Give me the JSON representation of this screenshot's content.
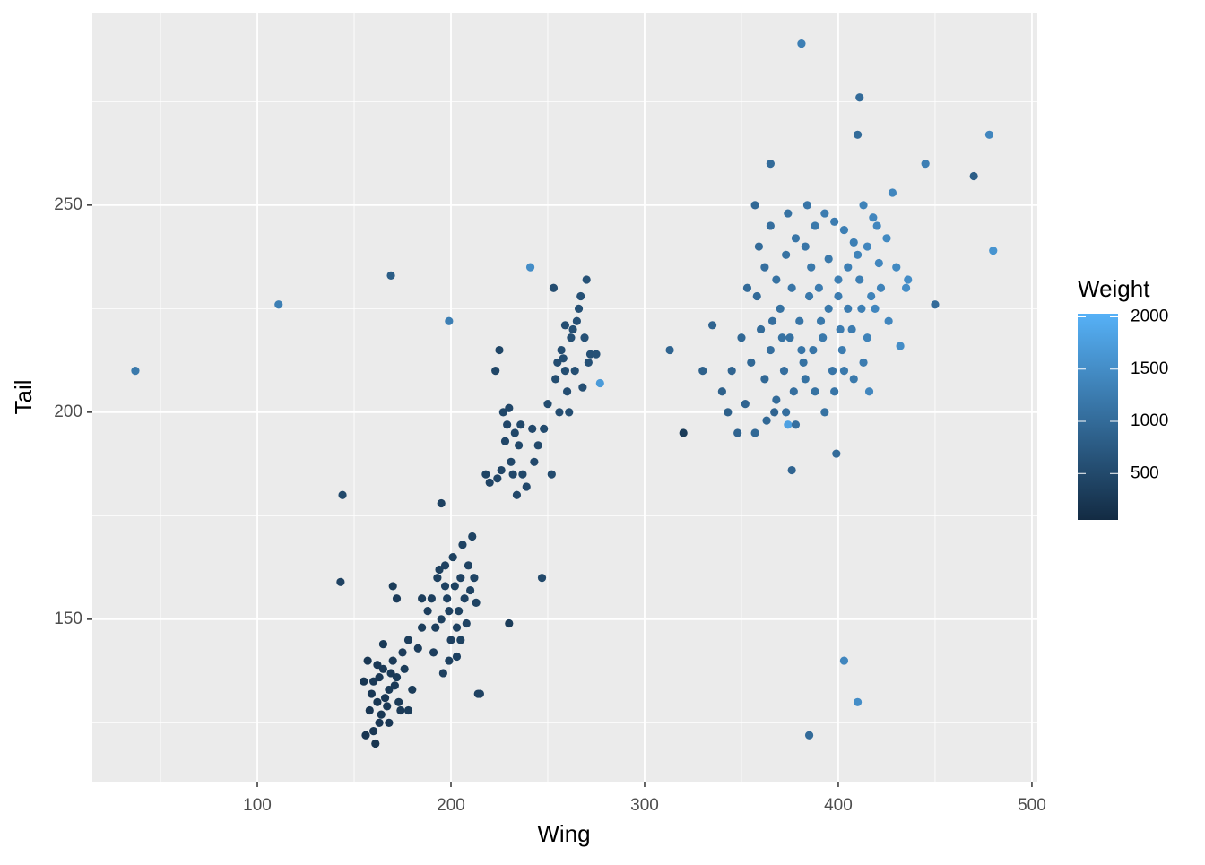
{
  "chart_data": {
    "type": "scatter",
    "x_label": "Wing",
    "y_label": "Tail",
    "legend_title": "Weight",
    "xlim": [
      14.8,
      502.8
    ],
    "ylim": [
      110.8,
      296.5
    ],
    "xticks": [
      100,
      200,
      300,
      400,
      500
    ],
    "yticks": [
      150,
      200,
      250
    ],
    "x_minor_ticks": [
      50,
      150,
      250,
      350,
      450
    ],
    "y_minor_ticks": [
      125,
      175,
      225,
      275
    ],
    "grid": true,
    "color_low": "#132B43",
    "color_high": "#56B1F7",
    "colorlim": [
      56,
      2030
    ],
    "color_ticks": [
      500,
      1000,
      1500,
      2000
    ],
    "x": [
      37,
      111,
      169,
      199,
      241,
      144,
      143,
      277,
      313,
      320,
      385,
      403,
      410,
      381,
      411,
      410,
      478,
      470,
      445,
      480,
      365,
      450,
      432,
      399,
      376,
      374,
      247,
      230,
      215,
      160,
      162,
      165,
      158,
      170,
      168,
      163,
      156,
      172,
      175,
      166,
      161,
      159,
      164,
      167,
      171,
      173,
      176,
      178,
      180,
      155,
      157,
      169,
      174,
      165,
      162,
      168,
      178,
      183,
      185,
      170,
      172,
      160,
      163,
      190,
      193,
      195,
      197,
      199,
      201,
      203,
      205,
      207,
      209,
      211,
      200,
      196,
      194,
      192,
      198,
      202,
      204,
      206,
      208,
      210,
      212,
      213,
      191,
      188,
      185,
      195,
      214,
      203,
      197,
      199,
      205,
      218,
      220,
      223,
      225,
      226,
      228,
      230,
      231,
      233,
      235,
      237,
      239,
      242,
      245,
      243,
      232,
      229,
      236,
      253,
      255,
      257,
      259,
      260,
      262,
      264,
      266,
      268,
      270,
      272,
      250,
      252,
      256,
      259,
      261,
      263,
      265,
      267,
      248,
      254,
      258,
      269,
      271,
      275,
      224,
      227,
      234,
      360,
      365,
      370,
      375,
      380,
      385,
      390,
      395,
      400,
      405,
      410,
      415,
      420,
      425,
      428,
      430,
      435,
      372,
      377,
      382,
      387,
      392,
      397,
      402,
      407,
      412,
      417,
      422,
      362,
      367,
      355,
      350,
      345,
      340,
      343,
      348,
      352,
      357,
      363,
      368,
      373,
      378,
      383,
      388,
      393,
      398,
      403,
      408,
      413,
      416,
      358,
      362,
      368,
      373,
      378,
      383,
      388,
      393,
      398,
      403,
      408,
      413,
      418,
      357,
      395,
      400,
      386,
      376,
      366,
      371,
      381,
      391,
      401,
      411,
      421,
      426,
      436,
      335,
      330,
      353,
      359,
      365,
      374,
      384,
      405,
      415,
      419
    ],
    "y": [
      210,
      226,
      233,
      222,
      235,
      180,
      159,
      207,
      215,
      195,
      122,
      140,
      130,
      289,
      276,
      267,
      267,
      257,
      260,
      239,
      260,
      226,
      216,
      190,
      186,
      197,
      160,
      149,
      132,
      135,
      130,
      138,
      128,
      140,
      133,
      125,
      122,
      136,
      142,
      131,
      120,
      132,
      127,
      129,
      134,
      130,
      138,
      145,
      133,
      135,
      140,
      137,
      128,
      144,
      139,
      125,
      128,
      143,
      148,
      158,
      155,
      123,
      136,
      155,
      160,
      150,
      158,
      152,
      165,
      148,
      160,
      155,
      163,
      170,
      145,
      137,
      162,
      148,
      155,
      158,
      152,
      168,
      149,
      157,
      160,
      154,
      142,
      152,
      155,
      178,
      132,
      141,
      163,
      140,
      145,
      185,
      183,
      210,
      215,
      186,
      193,
      201,
      188,
      195,
      192,
      185,
      182,
      196,
      192,
      188,
      185,
      197,
      197,
      230,
      212,
      215,
      221,
      205,
      218,
      210,
      225,
      206,
      232,
      214,
      202,
      185,
      200,
      210,
      200,
      220,
      222,
      228,
      196,
      208,
      213,
      218,
      212,
      214,
      184,
      200,
      180,
      220,
      215,
      225,
      218,
      222,
      228,
      230,
      225,
      232,
      235,
      238,
      240,
      245,
      242,
      253,
      235,
      230,
      210,
      205,
      212,
      215,
      218,
      210,
      215,
      220,
      225,
      228,
      230,
      208,
      200,
      212,
      218,
      210,
      205,
      200,
      195,
      202,
      195,
      198,
      203,
      200,
      197,
      208,
      205,
      200,
      205,
      210,
      208,
      212,
      205,
      228,
      235,
      232,
      238,
      242,
      240,
      245,
      248,
      246,
      244,
      241,
      250,
      247,
      250,
      237,
      228,
      235,
      230,
      222,
      218,
      215,
      222,
      220,
      232,
      236,
      222,
      232,
      221,
      210,
      230,
      240,
      245,
      248,
      250,
      225,
      218,
      225
    ],
    "weight": [
      1200,
      1300,
      800,
      1300,
      1500,
      500,
      400,
      1700,
      900,
      300,
      1000,
      1400,
      1500,
      1300,
      1000,
      1000,
      1400,
      800,
      1300,
      1600,
      1000,
      1000,
      1500,
      1000,
      900,
      1800,
      500,
      300,
      400,
      250,
      230,
      260,
      220,
      280,
      270,
      240,
      210,
      300,
      310,
      250,
      200,
      240,
      230,
      260,
      280,
      290,
      300,
      320,
      300,
      220,
      230,
      270,
      280,
      270,
      250,
      250,
      300,
      320,
      330,
      300,
      310,
      220,
      240,
      350,
      360,
      360,
      380,
      380,
      390,
      380,
      400,
      400,
      410,
      420,
      370,
      350,
      360,
      350,
      380,
      390,
      390,
      400,
      400,
      410,
      420,
      420,
      340,
      340,
      330,
      380,
      400,
      380,
      370,
      360,
      390,
      420,
      430,
      450,
      450,
      440,
      460,
      470,
      470,
      470,
      480,
      480,
      490,
      490,
      500,
      490,
      470,
      460,
      480,
      550,
      560,
      560,
      570,
      560,
      580,
      580,
      600,
      580,
      620,
      600,
      540,
      530,
      560,
      570,
      570,
      580,
      590,
      600,
      530,
      550,
      560,
      610,
      600,
      620,
      440,
      450,
      470,
      1000,
      1050,
      1100,
      1100,
      1150,
      1200,
      1250,
      1200,
      1300,
      1300,
      1350,
      1400,
      1400,
      1450,
      1400,
      1450,
      1500,
      1050,
      1050,
      1100,
      1150,
      1200,
      1150,
      1250,
      1250,
      1300,
      1350,
      1350,
      950,
      900,
      950,
      950,
      900,
      850,
      850,
      900,
      900,
      950,
      950,
      1000,
      1050,
      1050,
      1100,
      1100,
      1100,
      1150,
      1200,
      1200,
      1250,
      1400,
      1000,
      1050,
      1100,
      1100,
      1150,
      1150,
      1200,
      1250,
      1250,
      1300,
      1300,
      1350,
      1400,
      950,
      1200,
      1250,
      1200,
      1150,
      1050,
      1100,
      1150,
      1200,
      1250,
      1300,
      1400,
      1400,
      1500,
      900,
      850,
      1000,
      1000,
      1050,
      1100,
      1150,
      1250,
      1350,
      1400
    ]
  }
}
